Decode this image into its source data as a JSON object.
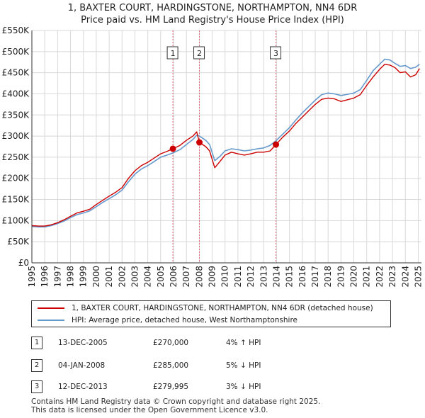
{
  "chart_data": {
    "type": "line",
    "title": "1, BAXTER COURT, HARDINGSTONE, NORTHAMPTON, NN4 6DR",
    "subtitle": "Price paid vs. HM Land Registry's House Price Index (HPI)",
    "xlabel": "",
    "ylabel": "",
    "xlim": [
      1995,
      2025.25
    ],
    "ylim": [
      0,
      550000
    ],
    "y_ticks": [
      0,
      50000,
      100000,
      150000,
      200000,
      250000,
      300000,
      350000,
      400000,
      450000,
      500000,
      550000
    ],
    "y_tick_labels": [
      "£0",
      "£50K",
      "£100K",
      "£150K",
      "£200K",
      "£250K",
      "£300K",
      "£350K",
      "£400K",
      "£450K",
      "£500K",
      "£550K"
    ],
    "x_ticks": [
      1995,
      1996,
      1997,
      1998,
      1999,
      2000,
      2001,
      2002,
      2003,
      2004,
      2005,
      2006,
      2007,
      2008,
      2009,
      2010,
      2011,
      2012,
      2013,
      2014,
      2015,
      2016,
      2017,
      2018,
      2019,
      2020,
      2021,
      2022,
      2023,
      2024,
      2025
    ],
    "x_tick_labels": [
      "1995",
      "1996",
      "1997",
      "1998",
      "1999",
      "2000",
      "2001",
      "2002",
      "2003",
      "2004",
      "2005",
      "2006",
      "2007",
      "2008",
      "2009",
      "2010",
      "2011",
      "2012",
      "2013",
      "2014",
      "2015",
      "2016",
      "2017",
      "2018",
      "2019",
      "2020",
      "2021",
      "2022",
      "2023",
      "2024",
      "2025"
    ],
    "grid": true,
    "series": [
      {
        "name": "1, BAXTER COURT, HARDINGSTONE, NORTHAMPTON, NN4 6DR (detached house)",
        "color": "#cc0000",
        "x": [
          1995.0,
          1995.5,
          1996.0,
          1996.5,
          1997.0,
          1997.5,
          1998.0,
          1998.5,
          1999.0,
          1999.5,
          2000.0,
          2000.5,
          2001.0,
          2001.5,
          2002.0,
          2002.5,
          2003.0,
          2003.5,
          2004.0,
          2004.5,
          2005.0,
          2005.5,
          2005.95,
          2006.5,
          2007.0,
          2007.5,
          2007.8,
          2008.01,
          2008.5,
          2008.8,
          2009.2,
          2009.6,
          2010.0,
          2010.5,
          2011.0,
          2011.5,
          2012.0,
          2012.5,
          2013.0,
          2013.5,
          2013.95,
          2014.5,
          2015.0,
          2015.5,
          2016.0,
          2016.5,
          2017.0,
          2017.5,
          2018.0,
          2018.5,
          2019.0,
          2019.5,
          2020.0,
          2020.5,
          2021.0,
          2021.5,
          2022.0,
          2022.4,
          2022.8,
          2023.2,
          2023.6,
          2024.0,
          2024.4,
          2024.8,
          2025.1
        ],
        "values": [
          88000,
          87000,
          87000,
          90000,
          95000,
          102000,
          110000,
          118000,
          122000,
          127000,
          138000,
          148000,
          158000,
          167000,
          178000,
          200000,
          218000,
          230000,
          238000,
          248000,
          258000,
          264000,
          270000,
          278000,
          290000,
          300000,
          310000,
          285000,
          275000,
          265000,
          225000,
          240000,
          255000,
          262000,
          258000,
          255000,
          258000,
          262000,
          262000,
          265000,
          279995,
          298000,
          312000,
          330000,
          345000,
          360000,
          375000,
          387000,
          390000,
          388000,
          382000,
          386000,
          390000,
          398000,
          420000,
          440000,
          458000,
          470000,
          468000,
          462000,
          450000,
          452000,
          440000,
          445000,
          460000
        ]
      },
      {
        "name": "HPI: Average price, detached house, West Northamptonshire",
        "color": "#6699cc",
        "x": [
          1995.0,
          1995.5,
          1996.0,
          1996.5,
          1997.0,
          1997.5,
          1998.0,
          1998.5,
          1999.0,
          1999.5,
          2000.0,
          2000.5,
          2001.0,
          2001.5,
          2002.0,
          2002.5,
          2003.0,
          2003.5,
          2004.0,
          2004.5,
          2005.0,
          2005.5,
          2005.95,
          2006.5,
          2007.0,
          2007.5,
          2007.8,
          2008.01,
          2008.5,
          2008.8,
          2009.2,
          2009.6,
          2010.0,
          2010.5,
          2011.0,
          2011.5,
          2012.0,
          2012.5,
          2013.0,
          2013.5,
          2013.95,
          2014.5,
          2015.0,
          2015.5,
          2016.0,
          2016.5,
          2017.0,
          2017.5,
          2018.0,
          2018.5,
          2019.0,
          2019.5,
          2020.0,
          2020.5,
          2021.0,
          2021.5,
          2022.0,
          2022.4,
          2022.8,
          2023.2,
          2023.6,
          2024.0,
          2024.4,
          2024.8,
          2025.1
        ],
        "values": [
          86000,
          85000,
          85000,
          88000,
          93000,
          99000,
          107000,
          114000,
          118000,
          123000,
          133000,
          143000,
          152000,
          161000,
          172000,
          192000,
          210000,
          222000,
          230000,
          240000,
          250000,
          255000,
          260000,
          268000,
          280000,
          292000,
          302000,
          300000,
          290000,
          280000,
          242000,
          252000,
          265000,
          270000,
          268000,
          265000,
          267000,
          270000,
          272000,
          278000,
          289000,
          305000,
          320000,
          338000,
          355000,
          370000,
          385000,
          398000,
          402000,
          400000,
          396000,
          399000,
          402000,
          410000,
          432000,
          455000,
          470000,
          482000,
          480000,
          472000,
          465000,
          467000,
          460000,
          463000,
          470000
        ]
      }
    ],
    "sale_markers": [
      {
        "label": "1",
        "x": 2005.95,
        "value": 270000
      },
      {
        "label": "2",
        "x": 2008.01,
        "value": 285000
      },
      {
        "label": "3",
        "x": 2013.95,
        "value": 279995
      }
    ]
  },
  "legend": {
    "property_label": "1, BAXTER COURT, HARDINGSTONE, NORTHAMPTON, NN4 6DR (detached house)",
    "hpi_label": "HPI: Average price, detached house, West Northamptonshire"
  },
  "sales": [
    {
      "num": "1",
      "date": "13-DEC-2005",
      "price": "£270,000",
      "hpi": "4% ↑ HPI"
    },
    {
      "num": "2",
      "date": "04-JAN-2008",
      "price": "£285,000",
      "hpi": "5% ↓ HPI"
    },
    {
      "num": "3",
      "date": "12-DEC-2013",
      "price": "£279,995",
      "hpi": "3% ↓ HPI"
    }
  ],
  "footer": {
    "line1": "Contains HM Land Registry data © Crown copyright and database right 2025.",
    "line2": "This data is licensed under the Open Government Licence v3.0."
  }
}
